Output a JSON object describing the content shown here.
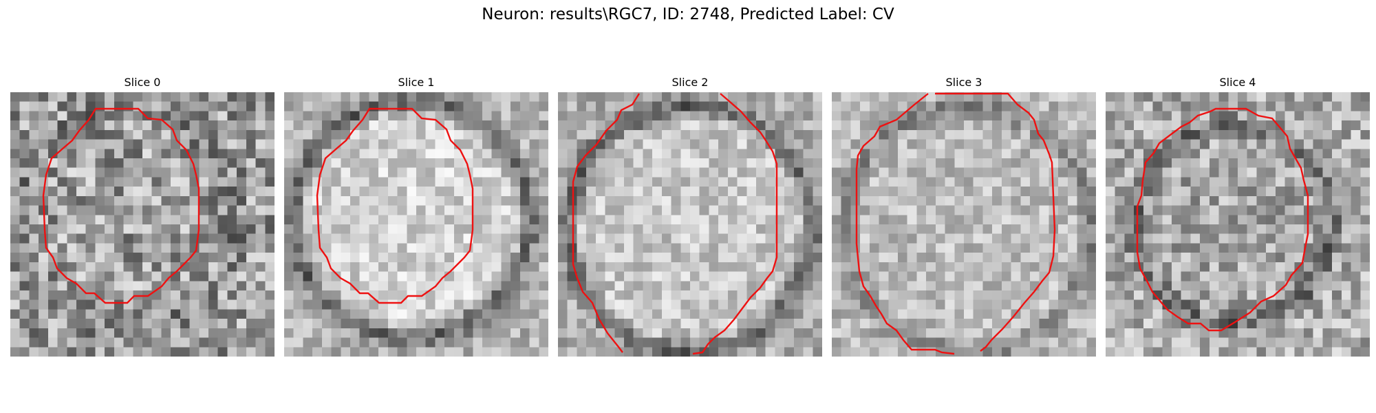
{
  "figure": {
    "title": "Neuron: results\\RGC7, ID: 2748, Predicted Label: CV",
    "contour_color": "#ee1111",
    "colormap": "grayscale",
    "panels": [
      {
        "label": "Slice 0",
        "image_name": "slice-0-image"
      },
      {
        "label": "Slice 1",
        "image_name": "slice-1-image"
      },
      {
        "label": "Slice 2",
        "image_name": "slice-2-image"
      },
      {
        "label": "Slice 3",
        "image_name": "slice-3-image"
      },
      {
        "label": "Slice 4",
        "image_name": "slice-4-image"
      }
    ]
  }
}
